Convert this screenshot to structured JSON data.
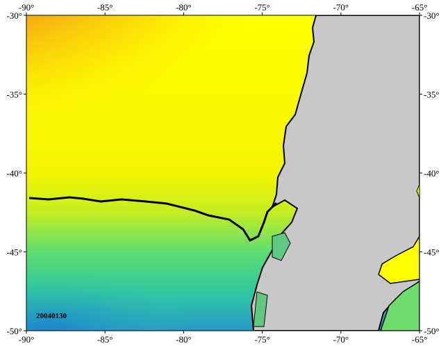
{
  "map": {
    "date_label": "20040130",
    "xlim": [
      -90,
      -65
    ],
    "ylim": [
      -50,
      -30
    ],
    "xticks": [
      {
        "value": -90,
        "label": "-90°"
      },
      {
        "value": -85,
        "label": "-85°"
      },
      {
        "value": -80,
        "label": "-80°"
      },
      {
        "value": -75,
        "label": "-75°"
      },
      {
        "value": -70,
        "label": "-70°"
      },
      {
        "value": -65,
        "label": "-65°"
      }
    ],
    "yticks": [
      {
        "value": -30,
        "label": "-30°"
      },
      {
        "value": -35,
        "label": "-35°"
      },
      {
        "value": -40,
        "label": "-40°"
      },
      {
        "value": -45,
        "label": "-45°"
      },
      {
        "value": -50,
        "label": "-50°"
      }
    ]
  }
}
